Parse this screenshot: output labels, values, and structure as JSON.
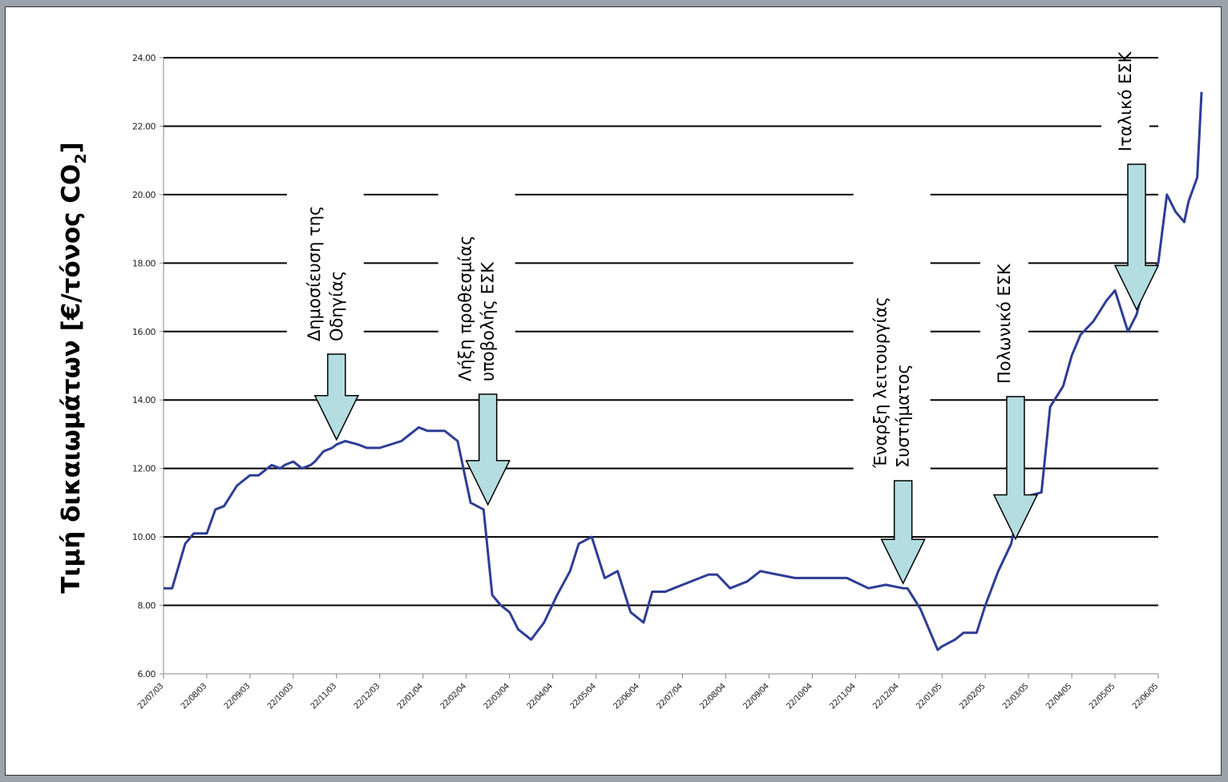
{
  "chart_data": {
    "type": "line",
    "ylabel": "Τιμή δικαιωμάτων [€/τόνος CO₂]",
    "ylabel_parts": {
      "main": "Τιμή δικαιωμάτων [€/τόνος CO",
      "sub": "2",
      "end": "]"
    },
    "xlabel": "",
    "ylim": [
      6,
      24
    ],
    "y_ticks": [
      "6.00",
      "8.00",
      "10.00",
      "12.00",
      "14.00",
      "16.00",
      "18.00",
      "20.00",
      "22.00",
      "24.00"
    ],
    "x_ticks": [
      "22/07/03",
      "22/08/03",
      "22/09/03",
      "22/10/03",
      "22/11/03",
      "22/12/03",
      "22/01/04",
      "22/02/04",
      "22/03/04",
      "22/04/04",
      "22/05/04",
      "22/06/04",
      "22/07/04",
      "22/08/04",
      "22/09/04",
      "22/10/04",
      "22/11/04",
      "22/12/04",
      "22/01/05",
      "22/02/05",
      "22/03/05",
      "22/04/05",
      "22/05/05",
      "22/06/05"
    ],
    "grid": "horizontal",
    "line_color": "#2e3d95",
    "series": [
      {
        "x": [
          0,
          0.2,
          0.5,
          0.7,
          1.0,
          1.2,
          1.4,
          1.7,
          2.0,
          2.2,
          2.5,
          2.7,
          2.8,
          3.0,
          3.2,
          3.4,
          3.5,
          3.7,
          3.9,
          4.0,
          4.2,
          4.5,
          4.7,
          5.0,
          5.5,
          5.9,
          6.1,
          6.3,
          6.5,
          6.8,
          7.1,
          7.4,
          7.6,
          7.8,
          8.0,
          8.2,
          8.5,
          8.8,
          9.1,
          9.4,
          9.6,
          9.9,
          10.2,
          10.5,
          10.8,
          11.1,
          11.3,
          11.6,
          11.8,
          12.0,
          12.2,
          12.4,
          12.6,
          12.8,
          13.1,
          13.5,
          13.8,
          14.2,
          14.6,
          14.9,
          15.3,
          15.8,
          16.3,
          16.7,
          17.1,
          17.2,
          17.5,
          17.9,
          18.0,
          18.3,
          18.5,
          18.8,
          19.0,
          19.3,
          19.6,
          19.8,
          20.0,
          20.3,
          20.5,
          20.8,
          21.0,
          21.2,
          21.5,
          21.8,
          22.0,
          22.3,
          22.5,
          22.7,
          23.0,
          23.2,
          23.4,
          23.6,
          23.7,
          23.9,
          24.0
        ],
        "y": [
          8.5,
          8.5,
          9.8,
          10.1,
          10.1,
          10.8,
          10.9,
          11.5,
          11.8,
          11.8,
          12.1,
          12.0,
          12.1,
          12.2,
          12.0,
          12.1,
          12.2,
          12.5,
          12.6,
          12.7,
          12.8,
          12.7,
          12.6,
          12.6,
          12.8,
          13.2,
          13.1,
          13.1,
          13.1,
          12.8,
          11.0,
          10.8,
          8.3,
          8.0,
          7.8,
          7.3,
          7.0,
          7.5,
          8.3,
          9.0,
          9.8,
          10.0,
          8.8,
          9.0,
          7.8,
          7.5,
          8.4,
          8.4,
          8.5,
          8.6,
          8.7,
          8.8,
          8.9,
          8.9,
          8.5,
          8.7,
          9.0,
          8.9,
          8.8,
          8.8,
          8.8,
          8.8,
          8.5,
          8.6,
          8.5,
          8.5,
          7.9,
          6.7,
          6.8,
          7.0,
          7.2,
          7.2,
          8.0,
          9.0,
          9.8,
          11.0,
          11.2,
          11.3,
          13.8,
          14.4,
          15.3,
          15.9,
          16.3,
          16.9,
          17.2,
          16.0,
          16.5,
          17.5,
          18.0,
          20.0,
          19.5,
          19.2,
          19.8,
          20.5,
          23.0
        ]
      }
    ],
    "annotations": [
      {
        "lines": [
          "Δημοσίευση της",
          "Οδηγίας"
        ],
        "target_x": 4.0
      },
      {
        "lines": [
          "Λήξη προθεσμίας",
          "υποβολής ΕΣΚ"
        ],
        "target_x": 7.5
      },
      {
        "lines": [
          "Έναρξη λειτουργίας",
          "Συστήματος"
        ],
        "target_x": 17.1
      },
      {
        "lines": [
          "Πολωνικό ΕΣΚ"
        ],
        "target_x": 19.7
      },
      {
        "lines": [
          "Ιταλικό ΕΣΚ"
        ],
        "target_x": 22.5
      }
    ],
    "arrow_color": "#b3dde1"
  }
}
